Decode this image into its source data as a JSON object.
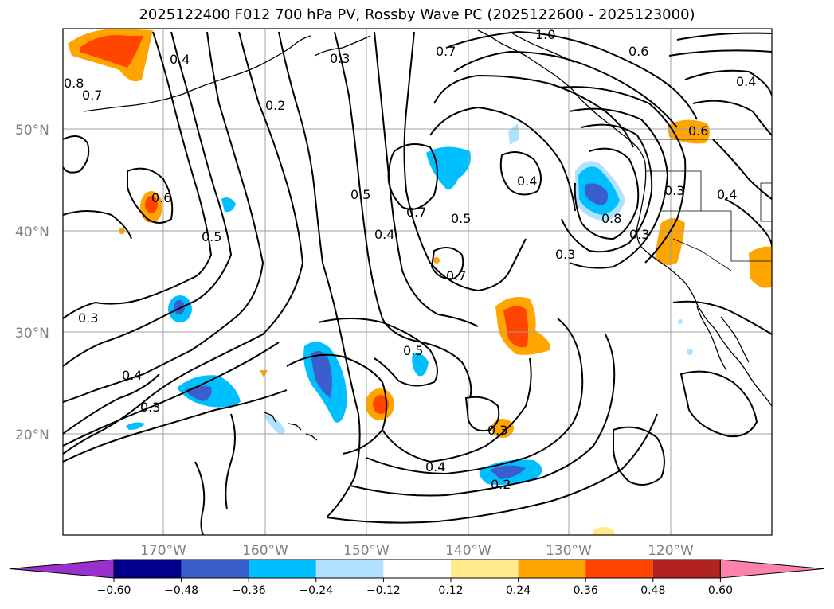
{
  "title": "2025122400 F012 700 hPa PV, Rossby Wave PC (2025122600 - 2025123000)",
  "lat_labels": [
    "50°N",
    "40°N",
    "30°N",
    "20°N"
  ],
  "lon_labels": [
    "170°W",
    "160°W",
    "150°W",
    "140°W",
    "130°W",
    "120°W"
  ],
  "contour_labels": [
    "1.0",
    "0.3",
    "0.4",
    "0.7",
    "0.6",
    "0.8",
    "0.7",
    "0.2",
    "0.4",
    "0.6",
    "0.4",
    "0.5",
    "0.7",
    "0.5",
    "0.4",
    "0.8",
    "0.3",
    "0.3",
    "0.6",
    "0.5",
    "0.7",
    "0.4",
    "0.3",
    "0.5",
    "0.4",
    "0.3",
    "0.3",
    "0.4",
    "0.2",
    "0.3"
  ],
  "colorbar": {
    "labels": [
      "−0.60",
      "−0.48",
      "−0.36",
      "−0.24",
      "−0.12",
      "0.12",
      "0.24",
      "0.36",
      "0.48",
      "0.60"
    ],
    "colors": [
      "#9932cc",
      "#00008b",
      "#3a5fcd",
      "#00bfff",
      "#b0e2ff",
      "#ffffff",
      "#ffeb8c",
      "#ffa500",
      "#ff4500",
      "#b22222",
      "#ff82ab"
    ]
  }
}
